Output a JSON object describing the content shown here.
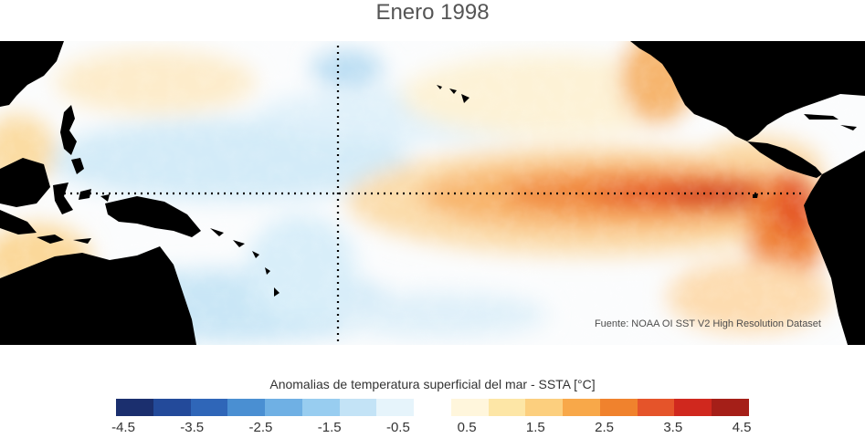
{
  "title": "Enero 1998",
  "source": "Fuente: NOAA OI SST V2 High Resolution Dataset",
  "colorbar": {
    "label": "Anomalias de temperatura superficial del mar - SSTA  [°C]",
    "ticks": [
      "-4.5",
      "-3.5",
      "-2.5",
      "-1.5",
      "-0.5",
      "0.5",
      "1.5",
      "2.5",
      "3.5",
      "4.5"
    ],
    "colors": [
      "#1b2f6e",
      "#234a9a",
      "#2f66b8",
      "#4a8fd2",
      "#6fb0e4",
      "#98cdf0",
      "#c3e3f6",
      "#e6f4fb",
      "#ffffff",
      "#fff6dc",
      "#fde6a6",
      "#fccf7e",
      "#f8a849",
      "#f0822d",
      "#e5542a",
      "#d0281e",
      "#a51f18"
    ]
  },
  "map": {
    "land_color": "#000000",
    "reference_lines": [
      "equator",
      "dateline"
    ]
  }
}
